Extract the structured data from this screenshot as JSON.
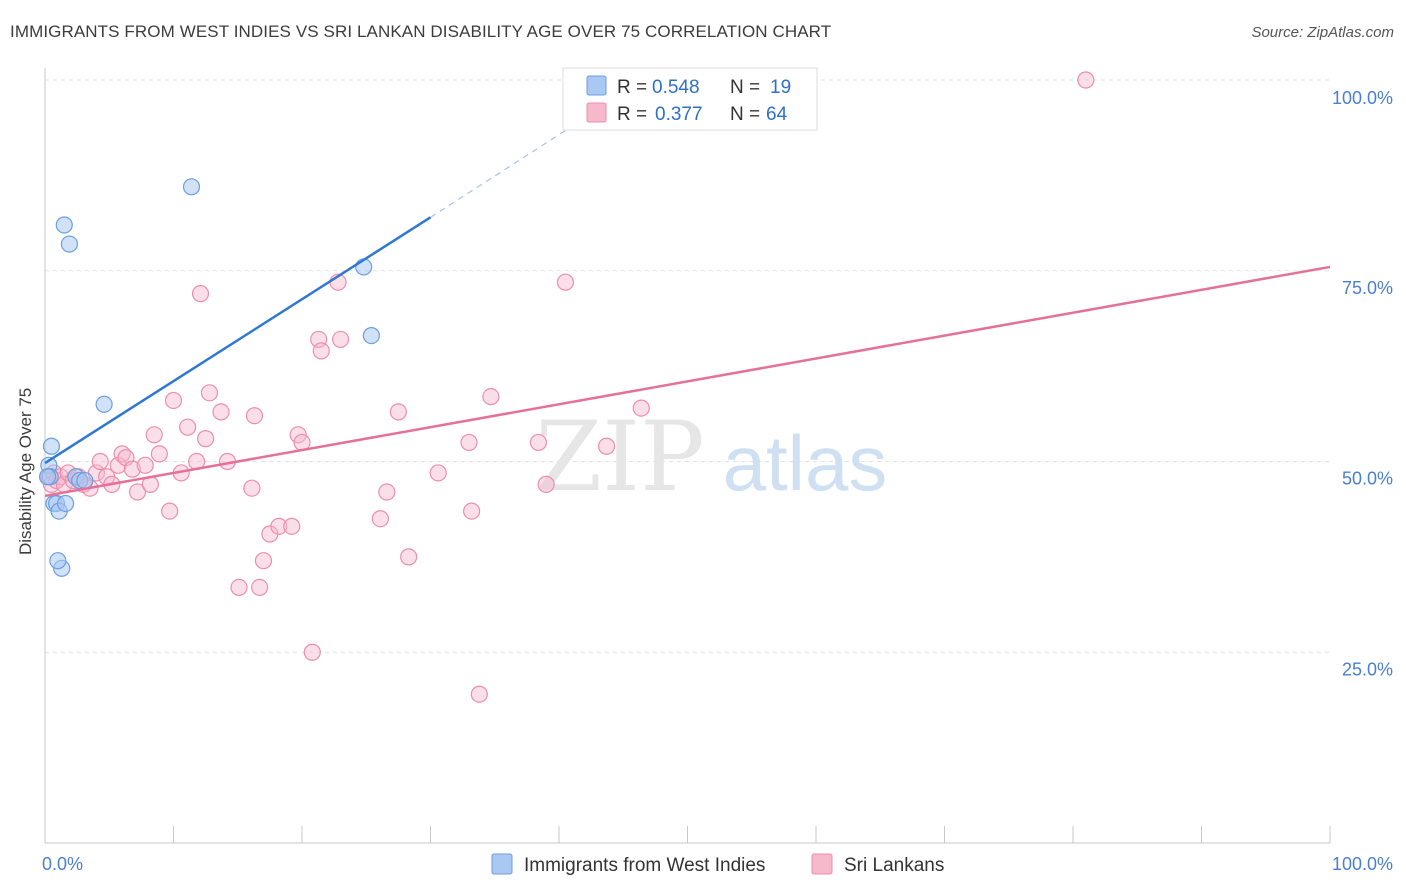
{
  "title": "IMMIGRANTS FROM WEST INDIES VS SRI LANKAN DISABILITY AGE OVER 75 CORRELATION CHART",
  "source": "Source: ZipAtlas.com",
  "watermark": {
    "zip": "ZIP",
    "atlas": "atlas"
  },
  "colors": {
    "blue_fill": "#a9c8f2",
    "blue_stroke": "#6a9fe0",
    "blue_line": "#2f78d0",
    "pink_fill": "#f6b8cb",
    "pink_stroke": "#ec8eab",
    "pink_line": "#e5719a",
    "tick_text": "#4a7fd0",
    "grid": "#e2e2e2"
  },
  "legend_top": {
    "rows": [
      {
        "r_label": "R =",
        "r_value": "0.548",
        "n_label": "N =",
        "n_value": "19"
      },
      {
        "r_label": "R =",
        "r_value": "0.377",
        "n_label": "N =",
        "n_value": "64"
      }
    ]
  },
  "chart_data": {
    "type": "scatter",
    "title": "IMMIGRANTS FROM WEST INDIES VS SRI LANKAN DISABILITY AGE OVER 75 CORRELATION CHART",
    "xlabel": "",
    "ylabel": "Disability Age Over 75",
    "xlim": [
      0,
      100
    ],
    "ylim": [
      0,
      100
    ],
    "x_tick_labels": [
      "0.0%",
      "100.0%"
    ],
    "y_tick_labels": [
      "25.0%",
      "50.0%",
      "75.0%",
      "100.0%"
    ],
    "y_ticks": [
      25,
      50,
      75,
      100
    ],
    "legend": [
      "Immigrants from West Indies",
      "Sri Lankans"
    ],
    "series": [
      {
        "name": "Immigrants from West Indies",
        "points": [
          [
            0.3,
            49.5
          ],
          [
            0.4,
            48.0
          ],
          [
            0.5,
            52.0
          ],
          [
            0.7,
            44.5
          ],
          [
            0.9,
            44.5
          ],
          [
            1.1,
            43.5
          ],
          [
            1.3,
            36.0
          ],
          [
            1.6,
            44.5
          ],
          [
            1.5,
            81.0
          ],
          [
            1.9,
            78.5
          ],
          [
            2.4,
            48.0
          ],
          [
            2.7,
            47.5
          ],
          [
            3.1,
            47.5
          ],
          [
            1.0,
            37.0
          ],
          [
            4.6,
            57.5
          ],
          [
            11.4,
            86.0
          ],
          [
            24.8,
            75.5
          ],
          [
            25.4,
            66.5
          ],
          [
            0.2,
            48.0
          ]
        ],
        "trend": {
          "x": [
            0,
            30
          ],
          "y": [
            49.8,
            82.0
          ]
        },
        "trend_dashed": {
          "x": [
            30,
            42
          ],
          "y": [
            82.0,
            95.0
          ]
        }
      },
      {
        "name": "Sri Lankans",
        "points": [
          [
            0.3,
            48.0
          ],
          [
            0.5,
            47.0
          ],
          [
            0.7,
            48.5
          ],
          [
            0.9,
            47.5
          ],
          [
            1.2,
            48.0
          ],
          [
            1.5,
            47.0
          ],
          [
            1.8,
            48.5
          ],
          [
            2.2,
            47.5
          ],
          [
            2.6,
            48.0
          ],
          [
            3.0,
            47.0
          ],
          [
            3.5,
            46.5
          ],
          [
            4.0,
            48.5
          ],
          [
            4.3,
            50.0
          ],
          [
            4.8,
            48.0
          ],
          [
            5.2,
            47.0
          ],
          [
            5.7,
            49.5
          ],
          [
            6.0,
            51.0
          ],
          [
            6.3,
            50.5
          ],
          [
            6.8,
            49.0
          ],
          [
            7.2,
            46.0
          ],
          [
            7.8,
            49.5
          ],
          [
            8.2,
            47.0
          ],
          [
            8.5,
            53.5
          ],
          [
            8.9,
            51.0
          ],
          [
            9.7,
            43.5
          ],
          [
            10.0,
            58.0
          ],
          [
            10.6,
            48.5
          ],
          [
            11.1,
            54.5
          ],
          [
            11.8,
            50.0
          ],
          [
            12.1,
            72.0
          ],
          [
            12.5,
            53.0
          ],
          [
            12.8,
            59.0
          ],
          [
            13.7,
            56.5
          ],
          [
            14.2,
            50.0
          ],
          [
            16.1,
            46.5
          ],
          [
            16.3,
            56.0
          ],
          [
            15.1,
            33.5
          ],
          [
            16.7,
            33.5
          ],
          [
            17.0,
            37.0
          ],
          [
            17.5,
            40.5
          ],
          [
            18.2,
            41.5
          ],
          [
            19.2,
            41.5
          ],
          [
            19.7,
            53.5
          ],
          [
            20.0,
            52.5
          ],
          [
            20.8,
            25.0
          ],
          [
            21.3,
            66.0
          ],
          [
            21.5,
            64.5
          ],
          [
            22.8,
            73.5
          ],
          [
            23.0,
            66.0
          ],
          [
            26.1,
            42.5
          ],
          [
            26.6,
            46.0
          ],
          [
            27.5,
            56.5
          ],
          [
            28.3,
            37.5
          ],
          [
            30.6,
            48.5
          ],
          [
            33.0,
            52.5
          ],
          [
            33.2,
            43.5
          ],
          [
            33.8,
            19.5
          ],
          [
            34.7,
            58.5
          ],
          [
            38.4,
            52.5
          ],
          [
            39.0,
            47.0
          ],
          [
            40.5,
            73.5
          ],
          [
            43.7,
            52.0
          ],
          [
            46.4,
            57.0
          ],
          [
            81.0,
            100.0
          ]
        ],
        "trend": {
          "x": [
            0,
            100
          ],
          "y": [
            45.5,
            75.5
          ]
        }
      }
    ]
  }
}
